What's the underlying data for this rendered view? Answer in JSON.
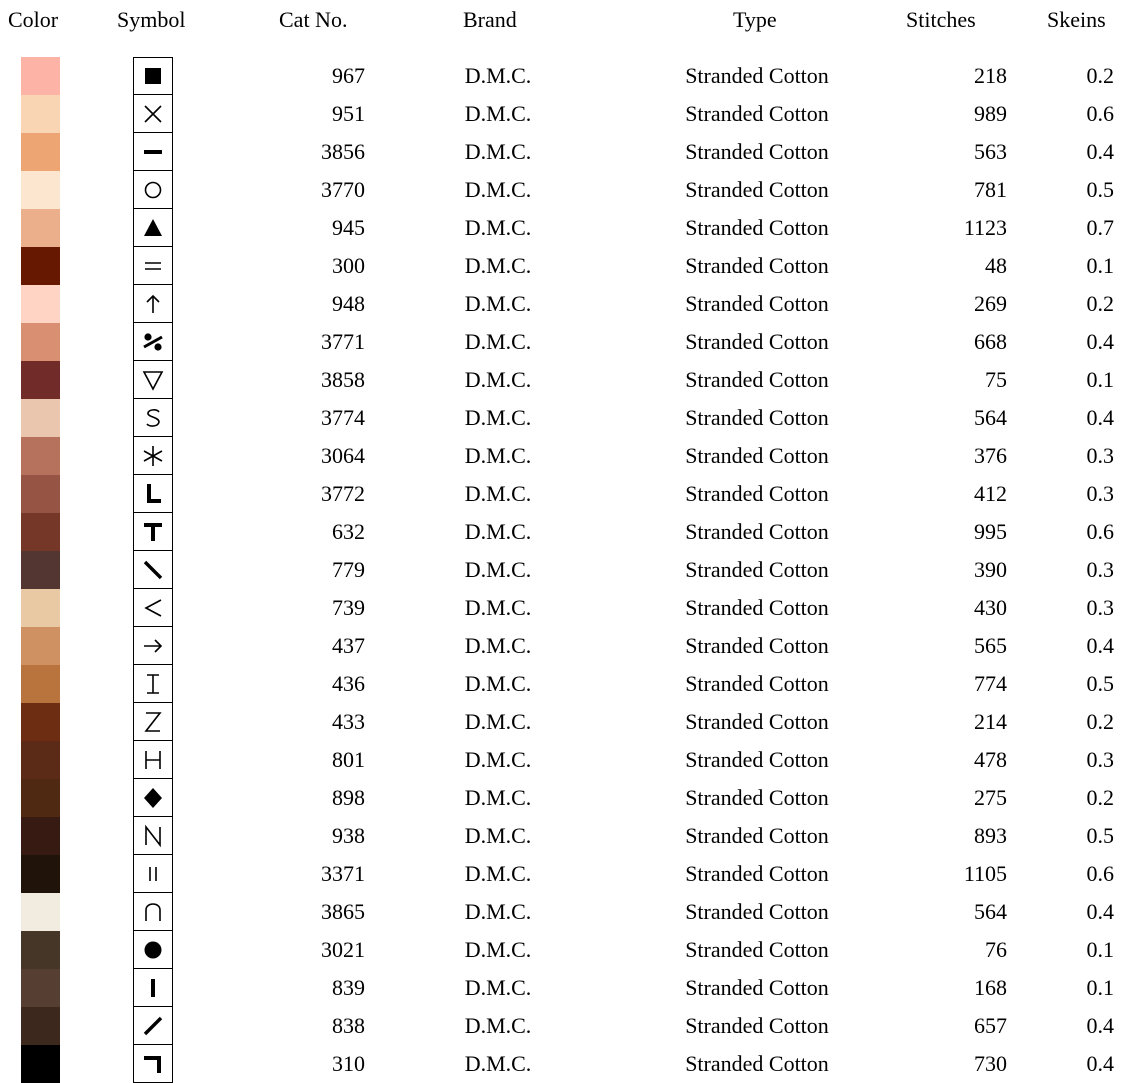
{
  "headers": {
    "color": "Color",
    "symbol": "Symbol",
    "cat_no": "Cat No.",
    "brand": "Brand",
    "type": "Type",
    "stitches": "Stitches",
    "skeins": "Skeins"
  },
  "rows": [
    {
      "color": "#FDB4A6",
      "symbol": "filled-square",
      "cat": "967",
      "brand": "D.M.C.",
      "type": "Stranded Cotton",
      "stitches": "218",
      "skeins": "0.2"
    },
    {
      "color": "#F9D5B3",
      "symbol": "x-cross",
      "cat": "951",
      "brand": "D.M.C.",
      "type": "Stranded Cotton",
      "stitches": "989",
      "skeins": "0.6"
    },
    {
      "color": "#EEA574",
      "symbol": "dash",
      "cat": "3856",
      "brand": "D.M.C.",
      "type": "Stranded Cotton",
      "stitches": "563",
      "skeins": "0.4"
    },
    {
      "color": "#FCE6CF",
      "symbol": "circle",
      "cat": "3770",
      "brand": "D.M.C.",
      "type": "Stranded Cotton",
      "stitches": "781",
      "skeins": "0.5"
    },
    {
      "color": "#ECAF8C",
      "symbol": "filled-triangle",
      "cat": "945",
      "brand": "D.M.C.",
      "type": "Stranded Cotton",
      "stitches": "1123",
      "skeins": "0.7"
    },
    {
      "color": "#661900",
      "symbol": "equals",
      "cat": "300",
      "brand": "D.M.C.",
      "type": "Stranded Cotton",
      "stitches": "48",
      "skeins": "0.1"
    },
    {
      "color": "#FFD4C4",
      "symbol": "arrow-up",
      "cat": "948",
      "brand": "D.M.C.",
      "type": "Stranded Cotton",
      "stitches": "269",
      "skeins": "0.2"
    },
    {
      "color": "#D98F72",
      "symbol": "percent",
      "cat": "3771",
      "brand": "D.M.C.",
      "type": "Stranded Cotton",
      "stitches": "668",
      "skeins": "0.4"
    },
    {
      "color": "#712B28",
      "symbol": "triangle-down",
      "cat": "3858",
      "brand": "D.M.C.",
      "type": "Stranded Cotton",
      "stitches": "75",
      "skeins": "0.1"
    },
    {
      "color": "#EBC6AE",
      "symbol": "letter-s",
      "cat": "3774",
      "brand": "D.M.C.",
      "type": "Stranded Cotton",
      "stitches": "564",
      "skeins": "0.4"
    },
    {
      "color": "#B7725D",
      "symbol": "asterisk",
      "cat": "3064",
      "brand": "D.M.C.",
      "type": "Stranded Cotton",
      "stitches": "376",
      "skeins": "0.3"
    },
    {
      "color": "#955444",
      "symbol": "letter-l",
      "cat": "3772",
      "brand": "D.M.C.",
      "type": "Stranded Cotton",
      "stitches": "412",
      "skeins": "0.3"
    },
    {
      "color": "#753728",
      "symbol": "letter-t",
      "cat": "632",
      "brand": "D.M.C.",
      "type": "Stranded Cotton",
      "stitches": "995",
      "skeins": "0.6"
    },
    {
      "color": "#533632",
      "symbol": "backslash",
      "cat": "779",
      "brand": "D.M.C.",
      "type": "Stranded Cotton",
      "stitches": "390",
      "skeins": "0.3"
    },
    {
      "color": "#E8C9A4",
      "symbol": "less-than",
      "cat": "739",
      "brand": "D.M.C.",
      "type": "Stranded Cotton",
      "stitches": "430",
      "skeins": "0.3"
    },
    {
      "color": "#D09162",
      "symbol": "arrow-right",
      "cat": "437",
      "brand": "D.M.C.",
      "type": "Stranded Cotton",
      "stitches": "565",
      "skeins": "0.4"
    },
    {
      "color": "#B9733C",
      "symbol": "i-beam",
      "cat": "436",
      "brand": "D.M.C.",
      "type": "Stranded Cotton",
      "stitches": "774",
      "skeins": "0.5"
    },
    {
      "color": "#6D2D13",
      "symbol": "letter-z",
      "cat": "433",
      "brand": "D.M.C.",
      "type": "Stranded Cotton",
      "stitches": "214",
      "skeins": "0.2"
    },
    {
      "color": "#5B2B17",
      "symbol": "letter-h",
      "cat": "801",
      "brand": "D.M.C.",
      "type": "Stranded Cotton",
      "stitches": "478",
      "skeins": "0.3"
    },
    {
      "color": "#4F2912",
      "symbol": "filled-diamond",
      "cat": "898",
      "brand": "D.M.C.",
      "type": "Stranded Cotton",
      "stitches": "275",
      "skeins": "0.2"
    },
    {
      "color": "#371A12",
      "symbol": "letter-n",
      "cat": "938",
      "brand": "D.M.C.",
      "type": "Stranded Cotton",
      "stitches": "893",
      "skeins": "0.5"
    },
    {
      "color": "#20130A",
      "symbol": "double-bar",
      "cat": "3371",
      "brand": "D.M.C.",
      "type": "Stranded Cotton",
      "stitches": "1105",
      "skeins": "0.6"
    },
    {
      "color": "#F1EBE0",
      "symbol": "arch",
      "cat": "3865",
      "brand": "D.M.C.",
      "type": "Stranded Cotton",
      "stitches": "564",
      "skeins": "0.4"
    },
    {
      "color": "#453627",
      "symbol": "filled-circle",
      "cat": "3021",
      "brand": "D.M.C.",
      "type": "Stranded Cotton",
      "stitches": "76",
      "skeins": "0.1"
    },
    {
      "color": "#573E33",
      "symbol": "vertical-bar",
      "cat": "839",
      "brand": "D.M.C.",
      "type": "Stranded Cotton",
      "stitches": "168",
      "skeins": "0.1"
    },
    {
      "color": "#3D281E",
      "symbol": "slash",
      "cat": "838",
      "brand": "D.M.C.",
      "type": "Stranded Cotton",
      "stitches": "657",
      "skeins": "0.4"
    },
    {
      "color": "#000000",
      "symbol": "corner",
      "cat": "310",
      "brand": "D.M.C.",
      "type": "Stranded Cotton",
      "stitches": "730",
      "skeins": "0.4"
    }
  ]
}
